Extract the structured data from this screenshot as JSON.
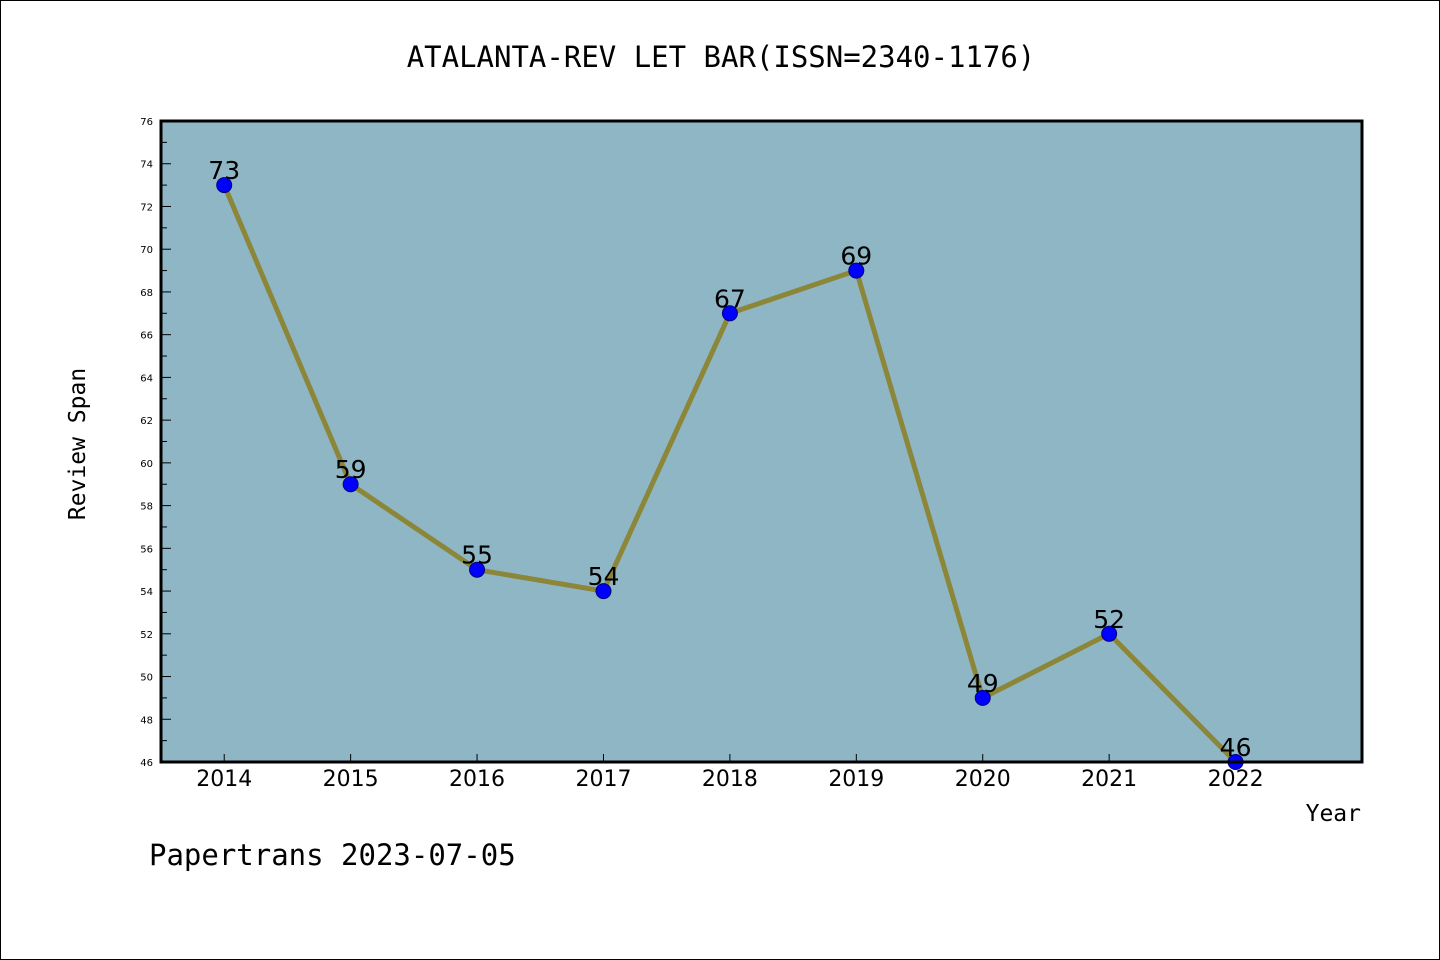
{
  "chart_data": {
    "type": "line",
    "title": "ATALANTA-REV LET BAR(ISSN=2340-1176)",
    "xlabel": "Year",
    "ylabel": "Review Span",
    "categories": [
      "2014",
      "2015",
      "2016",
      "2017",
      "2018",
      "2019",
      "2020",
      "2021",
      "2022"
    ],
    "series": [
      {
        "values": [
          73,
          59,
          55,
          54,
          67,
          69,
          49,
          52,
          46
        ]
      }
    ],
    "ylim": [
      46,
      76
    ],
    "yticks": [
      46,
      48,
      50,
      52,
      54,
      56,
      58,
      60,
      62,
      64,
      66,
      68,
      70,
      72,
      74,
      76
    ],
    "data_labels": true,
    "grid": false,
    "legend": "none",
    "colors": {
      "plot_background": "#8fb6c5",
      "line": "#8b8638",
      "marker_fill": "#0000ff",
      "marker_edge": "#000080"
    }
  },
  "footer": {
    "text": "Papertrans 2023-07-05"
  }
}
